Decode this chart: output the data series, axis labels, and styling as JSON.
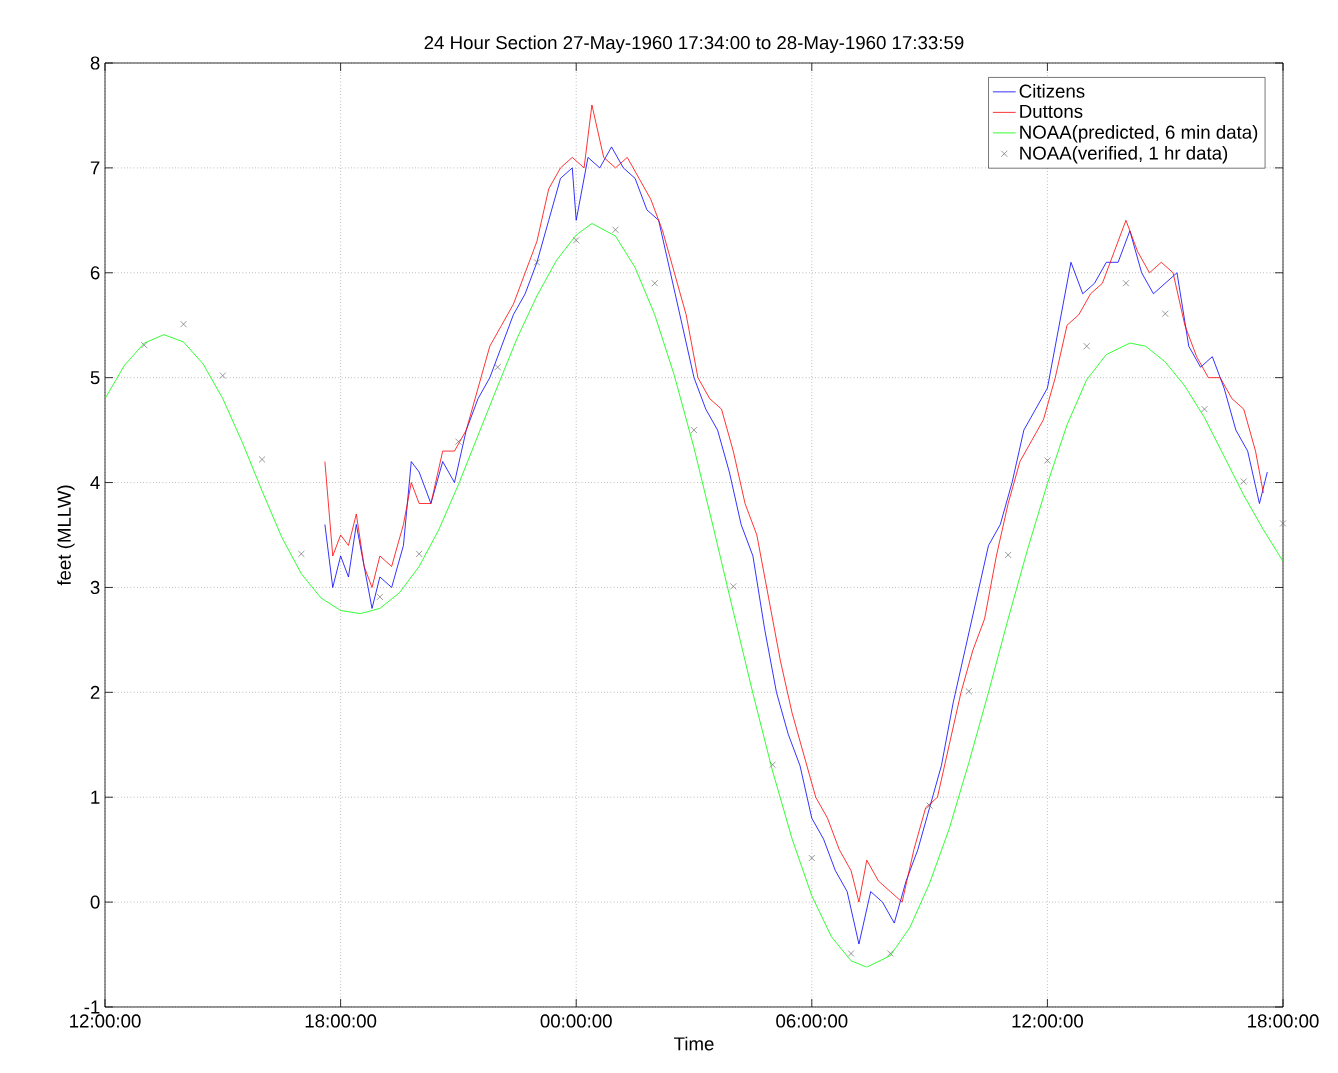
{
  "chart_data": {
    "type": "line",
    "title": "24 Hour Section 27-May-1960 17:34:00 to 28-May-1960 17:33:59",
    "xlabel": "Time",
    "ylabel": "feet (MLLW)",
    "xlim": [
      "1960-05-27T12:00",
      "1960-05-28T18:00"
    ],
    "ylim": [
      -1,
      8
    ],
    "xticks": [
      {
        "value": "1960-05-27T12:00",
        "label": "12:00:00"
      },
      {
        "value": "1960-05-27T18:00",
        "label": "18:00:00"
      },
      {
        "value": "1960-05-28T00:00",
        "label": "00:00:00"
      },
      {
        "value": "1960-05-28T06:00",
        "label": "06:00:00"
      },
      {
        "value": "1960-05-28T12:00",
        "label": "12:00:00"
      },
      {
        "value": "1960-05-28T18:00",
        "label": "18:00:00"
      }
    ],
    "yticks": [
      -1,
      0,
      1,
      2,
      3,
      4,
      5,
      6,
      7,
      8
    ],
    "grid": true,
    "legend": "top right",
    "series": [
      {
        "name": "Citizens",
        "marker": "none",
        "color": "#0000ff",
        "x": [
          "1960-05-27T17:36",
          "1960-05-27T17:48",
          "1960-05-27T18:00",
          "1960-05-27T18:12",
          "1960-05-27T18:24",
          "1960-05-27T18:36",
          "1960-05-27T18:48",
          "1960-05-27T19:00",
          "1960-05-27T19:18",
          "1960-05-27T19:36",
          "1960-05-27T19:48",
          "1960-05-27T20:00",
          "1960-05-27T20:18",
          "1960-05-27T20:36",
          "1960-05-27T20:54",
          "1960-05-27T21:12",
          "1960-05-27T21:30",
          "1960-05-27T21:48",
          "1960-05-27T22:06",
          "1960-05-27T22:24",
          "1960-05-27T22:42",
          "1960-05-27T23:00",
          "1960-05-27T23:18",
          "1960-05-27T23:36",
          "1960-05-27T23:54",
          "1960-05-28T00:00",
          "1960-05-28T00:18",
          "1960-05-28T00:36",
          "1960-05-28T00:54",
          "1960-05-28T01:12",
          "1960-05-28T01:30",
          "1960-05-28T01:48",
          "1960-05-28T02:06",
          "1960-05-28T02:24",
          "1960-05-28T02:42",
          "1960-05-28T03:00",
          "1960-05-28T03:18",
          "1960-05-28T03:36",
          "1960-05-28T03:54",
          "1960-05-28T04:12",
          "1960-05-28T04:30",
          "1960-05-28T04:48",
          "1960-05-28T05:06",
          "1960-05-28T05:24",
          "1960-05-28T05:42",
          "1960-05-28T06:00",
          "1960-05-28T06:18",
          "1960-05-28T06:36",
          "1960-05-28T06:54",
          "1960-05-28T07:12",
          "1960-05-28T07:30",
          "1960-05-28T07:48",
          "1960-05-28T08:06",
          "1960-05-28T08:24",
          "1960-05-28T08:42",
          "1960-05-28T09:00",
          "1960-05-28T09:18",
          "1960-05-28T09:36",
          "1960-05-28T09:54",
          "1960-05-28T10:12",
          "1960-05-28T10:30",
          "1960-05-28T10:48",
          "1960-05-28T11:06",
          "1960-05-28T11:24",
          "1960-05-28T11:42",
          "1960-05-28T12:00",
          "1960-05-28T12:18",
          "1960-05-28T12:36",
          "1960-05-28T12:54",
          "1960-05-28T13:12",
          "1960-05-28T13:30",
          "1960-05-28T13:48",
          "1960-05-28T14:06",
          "1960-05-28T14:24",
          "1960-05-28T14:42",
          "1960-05-28T15:00",
          "1960-05-28T15:18",
          "1960-05-28T15:36",
          "1960-05-28T15:54",
          "1960-05-28T16:12",
          "1960-05-28T16:30",
          "1960-05-28T16:48",
          "1960-05-28T17:06",
          "1960-05-28T17:24",
          "1960-05-28T17:36"
        ],
        "values": [
          3.6,
          3.0,
          3.3,
          3.1,
          3.6,
          3.2,
          2.8,
          3.1,
          3.0,
          3.4,
          4.2,
          4.1,
          3.8,
          4.2,
          4.0,
          4.5,
          4.8,
          5.0,
          5.3,
          5.6,
          5.8,
          6.1,
          6.5,
          6.9,
          7.0,
          6.5,
          7.1,
          7.0,
          7.2,
          7.0,
          6.9,
          6.6,
          6.5,
          6.0,
          5.5,
          5.0,
          4.7,
          4.5,
          4.1,
          3.6,
          3.3,
          2.6,
          2.0,
          1.6,
          1.3,
          0.8,
          0.6,
          0.3,
          0.1,
          -0.4,
          0.1,
          0.0,
          -0.2,
          0.2,
          0.5,
          0.9,
          1.3,
          1.9,
          2.4,
          2.9,
          3.4,
          3.6,
          4.0,
          4.5,
          4.7,
          4.9,
          5.5,
          6.1,
          5.8,
          5.9,
          6.1,
          6.1,
          6.4,
          6.0,
          5.8,
          5.9,
          6.0,
          5.3,
          5.1,
          5.2,
          4.9,
          4.5,
          4.3,
          3.8,
          4.1
        ]
      },
      {
        "name": "Duttons",
        "marker": "none",
        "color": "#ff0000",
        "x": [
          "1960-05-27T17:36",
          "1960-05-27T17:48",
          "1960-05-27T18:00",
          "1960-05-27T18:12",
          "1960-05-27T18:24",
          "1960-05-27T18:36",
          "1960-05-27T18:48",
          "1960-05-27T19:00",
          "1960-05-27T19:18",
          "1960-05-27T19:36",
          "1960-05-27T19:48",
          "1960-05-27T20:00",
          "1960-05-27T20:18",
          "1960-05-27T20:36",
          "1960-05-27T20:54",
          "1960-05-27T21:12",
          "1960-05-27T21:30",
          "1960-05-27T21:48",
          "1960-05-27T22:06",
          "1960-05-27T22:24",
          "1960-05-27T22:42",
          "1960-05-27T23:00",
          "1960-05-27T23:18",
          "1960-05-27T23:36",
          "1960-05-27T23:54",
          "1960-05-28T00:12",
          "1960-05-28T00:24",
          "1960-05-28T00:42",
          "1960-05-28T01:00",
          "1960-05-28T01:18",
          "1960-05-28T01:36",
          "1960-05-28T01:54",
          "1960-05-28T02:12",
          "1960-05-28T02:30",
          "1960-05-28T02:48",
          "1960-05-28T03:06",
          "1960-05-28T03:24",
          "1960-05-28T03:42",
          "1960-05-28T04:00",
          "1960-05-28T04:18",
          "1960-05-28T04:36",
          "1960-05-28T04:54",
          "1960-05-28T05:12",
          "1960-05-28T05:30",
          "1960-05-28T05:48",
          "1960-05-28T06:06",
          "1960-05-28T06:24",
          "1960-05-28T06:42",
          "1960-05-28T07:00",
          "1960-05-28T07:12",
          "1960-05-28T07:24",
          "1960-05-28T07:42",
          "1960-05-28T08:00",
          "1960-05-28T08:18",
          "1960-05-28T08:36",
          "1960-05-28T08:54",
          "1960-05-28T09:12",
          "1960-05-28T09:30",
          "1960-05-28T09:48",
          "1960-05-28T10:06",
          "1960-05-28T10:24",
          "1960-05-28T10:42",
          "1960-05-28T11:00",
          "1960-05-28T11:18",
          "1960-05-28T11:36",
          "1960-05-28T11:54",
          "1960-05-28T12:12",
          "1960-05-28T12:30",
          "1960-05-28T12:48",
          "1960-05-28T13:06",
          "1960-05-28T13:24",
          "1960-05-28T13:42",
          "1960-05-28T14:00",
          "1960-05-28T14:18",
          "1960-05-28T14:36",
          "1960-05-28T14:54",
          "1960-05-28T15:12",
          "1960-05-28T15:30",
          "1960-05-28T15:48",
          "1960-05-28T16:06",
          "1960-05-28T16:24",
          "1960-05-28T16:42",
          "1960-05-28T17:00",
          "1960-05-28T17:18",
          "1960-05-28T17:30"
        ],
        "values": [
          4.2,
          3.3,
          3.5,
          3.4,
          3.7,
          3.2,
          3.0,
          3.3,
          3.2,
          3.6,
          4.0,
          3.8,
          3.8,
          4.3,
          4.3,
          4.5,
          4.9,
          5.3,
          5.5,
          5.7,
          6.0,
          6.3,
          6.8,
          7.0,
          7.1,
          7.0,
          7.6,
          7.1,
          7.0,
          7.1,
          6.9,
          6.7,
          6.4,
          6.0,
          5.6,
          5.0,
          4.8,
          4.7,
          4.3,
          3.8,
          3.5,
          2.9,
          2.3,
          1.8,
          1.4,
          1.0,
          0.8,
          0.5,
          0.3,
          0.0,
          0.4,
          0.2,
          0.1,
          0.0,
          0.5,
          0.9,
          1.0,
          1.5,
          2.0,
          2.4,
          2.7,
          3.3,
          3.8,
          4.2,
          4.4,
          4.6,
          5.0,
          5.5,
          5.6,
          5.8,
          5.9,
          6.2,
          6.5,
          6.2,
          6.0,
          6.1,
          6.0,
          5.5,
          5.2,
          5.0,
          5.0,
          4.8,
          4.7,
          4.3,
          3.9
        ]
      },
      {
        "name": "NOAA(predicted, 6 min data)",
        "marker": "none",
        "color": "#00ff00",
        "x": [
          "1960-05-27T12:00",
          "1960-05-27T12:30",
          "1960-05-27T13:00",
          "1960-05-27T13:30",
          "1960-05-27T14:00",
          "1960-05-27T14:30",
          "1960-05-27T15:00",
          "1960-05-27T15:30",
          "1960-05-27T16:00",
          "1960-05-27T16:30",
          "1960-05-27T17:00",
          "1960-05-27T17:30",
          "1960-05-27T18:00",
          "1960-05-27T18:30",
          "1960-05-27T19:00",
          "1960-05-27T19:30",
          "1960-05-27T20:00",
          "1960-05-27T20:30",
          "1960-05-27T21:00",
          "1960-05-27T21:30",
          "1960-05-27T22:00",
          "1960-05-27T22:30",
          "1960-05-27T23:00",
          "1960-05-27T23:30",
          "1960-05-28T00:00",
          "1960-05-28T00:24",
          "1960-05-28T01:00",
          "1960-05-28T01:30",
          "1960-05-28T02:00",
          "1960-05-28T02:30",
          "1960-05-28T03:00",
          "1960-05-28T03:30",
          "1960-05-28T04:00",
          "1960-05-28T04:30",
          "1960-05-28T05:00",
          "1960-05-28T05:30",
          "1960-05-28T06:00",
          "1960-05-28T06:30",
          "1960-05-28T07:00",
          "1960-05-28T07:24",
          "1960-05-28T08:00",
          "1960-05-28T08:30",
          "1960-05-28T09:00",
          "1960-05-28T09:30",
          "1960-05-28T10:00",
          "1960-05-28T10:30",
          "1960-05-28T11:00",
          "1960-05-28T11:30",
          "1960-05-28T12:00",
          "1960-05-28T12:30",
          "1960-05-28T13:00",
          "1960-05-28T13:30",
          "1960-05-28T14:06",
          "1960-05-28T14:30",
          "1960-05-28T15:00",
          "1960-05-28T15:30",
          "1960-05-28T16:00",
          "1960-05-28T16:30",
          "1960-05-28T17:00",
          "1960-05-28T17:30",
          "1960-05-28T18:00"
        ],
        "values": [
          4.8,
          5.12,
          5.33,
          5.41,
          5.34,
          5.13,
          4.8,
          4.38,
          3.92,
          3.48,
          3.13,
          2.9,
          2.78,
          2.75,
          2.8,
          2.95,
          3.2,
          3.55,
          3.98,
          4.45,
          4.92,
          5.38,
          5.78,
          6.12,
          6.36,
          6.47,
          6.35,
          6.05,
          5.6,
          5.02,
          4.33,
          3.56,
          2.77,
          1.99,
          1.25,
          0.6,
          0.06,
          -0.33,
          -0.56,
          -0.62,
          -0.51,
          -0.24,
          0.18,
          0.7,
          1.33,
          2.0,
          2.7,
          3.37,
          3.99,
          4.55,
          4.98,
          5.22,
          5.33,
          5.3,
          5.15,
          4.92,
          4.62,
          4.25,
          3.88,
          3.55,
          3.25
        ]
      },
      {
        "name": "NOAA(verified, 1 hr data)",
        "type": "scatter",
        "marker": "cross",
        "color": "#666666",
        "x": [
          "1960-05-27T13:00",
          "1960-05-27T14:00",
          "1960-05-27T15:00",
          "1960-05-27T16:00",
          "1960-05-27T17:00",
          "1960-05-27T19:00",
          "1960-05-27T20:00",
          "1960-05-27T21:00",
          "1960-05-27T22:00",
          "1960-05-27T23:00",
          "1960-05-28T00:00",
          "1960-05-28T01:00",
          "1960-05-28T02:00",
          "1960-05-28T03:00",
          "1960-05-28T04:00",
          "1960-05-28T05:00",
          "1960-05-28T06:00",
          "1960-05-28T07:00",
          "1960-05-28T08:00",
          "1960-05-28T09:00",
          "1960-05-28T10:00",
          "1960-05-28T11:00",
          "1960-05-28T12:00",
          "1960-05-28T13:00",
          "1960-05-28T14:00",
          "1960-05-28T15:00",
          "1960-05-28T16:00",
          "1960-05-28T17:00",
          "1960-05-28T18:00"
        ],
        "values": [
          5.31,
          5.51,
          5.02,
          4.22,
          3.32,
          2.91,
          3.32,
          4.39,
          5.1,
          6.1,
          6.31,
          6.41,
          5.9,
          4.5,
          3.01,
          1.31,
          0.42,
          -0.49,
          -0.49,
          0.92,
          2.01,
          3.31,
          4.21,
          5.3,
          5.9,
          5.61,
          4.7,
          4.01,
          3.61
        ]
      }
    ]
  }
}
